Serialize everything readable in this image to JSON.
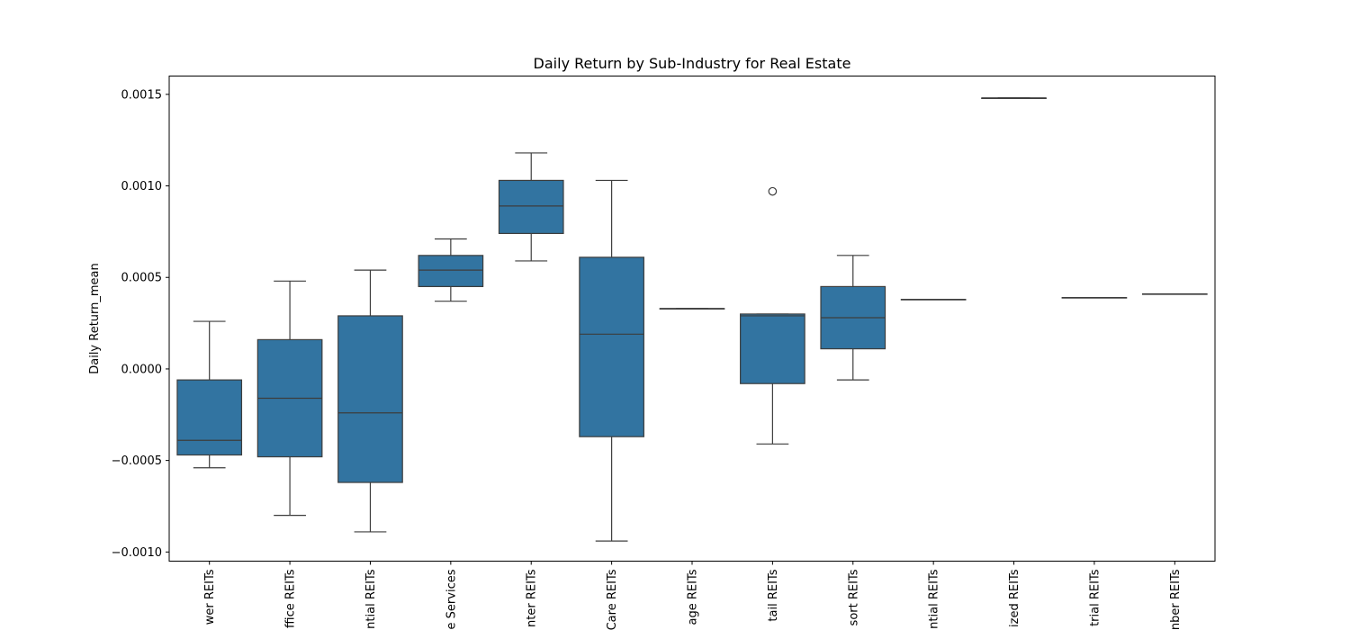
{
  "chart_data": {
    "type": "box",
    "title": "Daily Return by Sub-Industry for Real Estate",
    "xlabel": "",
    "ylabel": "Daily Return_mean",
    "ylim": [
      -0.00105,
      0.0016
    ],
    "yticks": [
      -0.001,
      -0.0005,
      0.0,
      0.0005,
      0.001,
      0.0015
    ],
    "ytick_labels": [
      "−0.0010",
      "−0.0005",
      "0.0000",
      "0.0005",
      "0.0010",
      "0.0015"
    ],
    "grid": false,
    "box_color": "#3274a1",
    "line_color": "#3d3d3d",
    "categories": [
      {
        "label": "wer REITs",
        "whisker_low": -0.00054,
        "q1": -0.00047,
        "median": -0.00039,
        "q3": -6e-05,
        "whisker_high": 0.00026,
        "outliers": []
      },
      {
        "label": "ffice REITs",
        "whisker_low": -0.0008,
        "q1": -0.00048,
        "median": -0.00016,
        "q3": 0.00016,
        "whisker_high": 0.00048,
        "outliers": []
      },
      {
        "label": "ntial REITs",
        "whisker_low": -0.00089,
        "q1": -0.00062,
        "median": -0.00024,
        "q3": 0.00029,
        "whisker_high": 0.00054,
        "outliers": []
      },
      {
        "label": "e Services",
        "whisker_low": 0.00037,
        "q1": 0.00045,
        "median": 0.00054,
        "q3": 0.00062,
        "whisker_high": 0.00071,
        "outliers": []
      },
      {
        "label": "nter REITs",
        "whisker_low": 0.00059,
        "q1": 0.00074,
        "median": 0.00089,
        "q3": 0.00103,
        "whisker_high": 0.00118,
        "outliers": []
      },
      {
        "label": "Care REITs",
        "whisker_low": -0.00094,
        "q1": -0.00037,
        "median": 0.00019,
        "q3": 0.00061,
        "whisker_high": 0.00103,
        "outliers": []
      },
      {
        "label": "age REITs",
        "whisker_low": 0.00033,
        "q1": 0.00033,
        "median": 0.00033,
        "q3": 0.00033,
        "whisker_high": 0.00033,
        "outliers": []
      },
      {
        "label": "tail REITs",
        "whisker_low": -0.00041,
        "q1": -8e-05,
        "median": 0.00029,
        "q3": 0.0003,
        "whisker_high": 0.0003,
        "outliers": [
          0.00097
        ]
      },
      {
        "label": "sort REITs",
        "whisker_low": -6e-05,
        "q1": 0.00011,
        "median": 0.00028,
        "q3": 0.00045,
        "whisker_high": 0.00062,
        "outliers": []
      },
      {
        "label": "ntial REITs",
        "whisker_low": 0.00038,
        "q1": 0.00038,
        "median": 0.00038,
        "q3": 0.00038,
        "whisker_high": 0.00038,
        "outliers": []
      },
      {
        "label": "ized REITs",
        "whisker_low": 0.00148,
        "q1": 0.00148,
        "median": 0.00148,
        "q3": 0.00148,
        "whisker_high": 0.00148,
        "outliers": []
      },
      {
        "label": "trial REITs",
        "whisker_low": 0.00039,
        "q1": 0.00039,
        "median": 0.00039,
        "q3": 0.00039,
        "whisker_high": 0.00039,
        "outliers": []
      },
      {
        "label": "nber REITs",
        "whisker_low": 0.00041,
        "q1": 0.00041,
        "median": 0.00041,
        "q3": 0.00041,
        "whisker_high": 0.00041,
        "outliers": []
      }
    ]
  }
}
